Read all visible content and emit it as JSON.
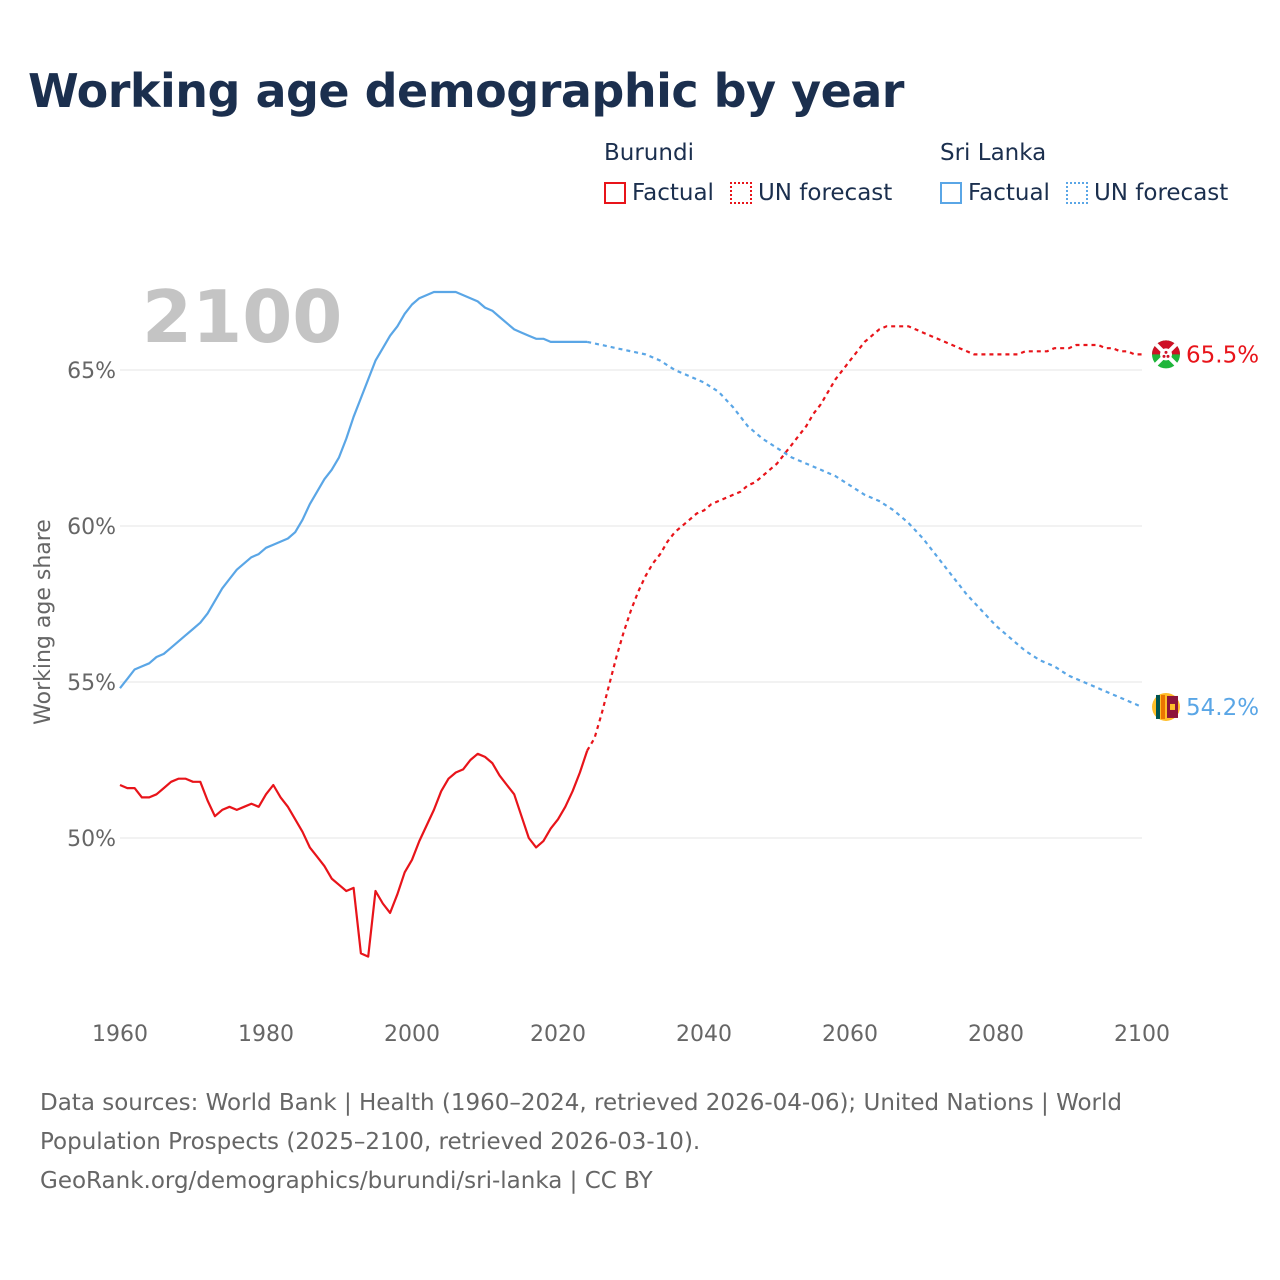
{
  "chart_data": {
    "type": "line",
    "title": "Working age demographic by year",
    "ylabel": "Working age share",
    "xlabel": "",
    "xlim": [
      1960,
      2100
    ],
    "ylim": [
      45.5,
      68.5
    ],
    "year_watermark": "2100",
    "x_ticks": [
      1960,
      1980,
      2000,
      2020,
      2040,
      2060,
      2080,
      2100
    ],
    "x_tick_labels": [
      "1960",
      "1980",
      "2000",
      "2020",
      "2040",
      "2060",
      "2080",
      "2100"
    ],
    "y_ticks": [
      50,
      55,
      60,
      65
    ],
    "y_tick_labels": [
      "50%",
      "55%",
      "60%",
      "65%"
    ],
    "legend": {
      "groups": [
        {
          "country": "Burundi",
          "factual_label": "Factual",
          "forecast_label": "UN forecast",
          "color": "#e8141a"
        },
        {
          "country": "Sri Lanka",
          "factual_label": "Factual",
          "forecast_label": "UN forecast",
          "color": "#5aa6e6"
        }
      ]
    },
    "series": [
      {
        "name": "Burundi",
        "color": "#e8141a",
        "end_label": "65.5%",
        "factual": {
          "x": [
            1960,
            1961,
            1962,
            1963,
            1964,
            1965,
            1966,
            1967,
            1968,
            1969,
            1970,
            1971,
            1972,
            1973,
            1974,
            1975,
            1976,
            1977,
            1978,
            1979,
            1980,
            1981,
            1982,
            1983,
            1984,
            1985,
            1986,
            1987,
            1988,
            1989,
            1990,
            1991,
            1992,
            1993,
            1994,
            1995,
            1996,
            1997,
            1998,
            1999,
            2000,
            2001,
            2002,
            2003,
            2004,
            2005,
            2006,
            2007,
            2008,
            2009,
            2010,
            2011,
            2012,
            2013,
            2014,
            2015,
            2016,
            2017,
            2018,
            2019,
            2020,
            2021,
            2022,
            2023,
            2024
          ],
          "y": [
            51.7,
            51.6,
            51.6,
            51.3,
            51.3,
            51.4,
            51.6,
            51.8,
            51.9,
            51.9,
            51.8,
            51.8,
            51.2,
            50.7,
            50.9,
            51.0,
            50.9,
            51.0,
            51.1,
            51.0,
            51.4,
            51.7,
            51.3,
            51.0,
            50.6,
            50.2,
            49.7,
            49.4,
            49.1,
            48.7,
            48.5,
            48.3,
            48.4,
            46.3,
            46.2,
            48.3,
            47.9,
            47.6,
            48.2,
            48.9,
            49.3,
            49.9,
            50.4,
            50.9,
            51.5,
            51.9,
            52.1,
            52.2,
            52.5,
            52.7,
            52.6,
            52.4,
            52.0,
            51.7,
            51.4,
            50.7,
            50.0,
            49.7,
            49.9,
            50.3,
            50.6,
            51.0,
            51.5,
            52.1,
            52.8
          ]
        },
        "forecast": {
          "x": [
            2024,
            2025,
            2026,
            2027,
            2028,
            2029,
            2030,
            2031,
            2032,
            2033,
            2034,
            2035,
            2036,
            2037,
            2038,
            2039,
            2040,
            2041,
            2042,
            2043,
            2044,
            2045,
            2046,
            2047,
            2048,
            2049,
            2050,
            2051,
            2052,
            2053,
            2054,
            2055,
            2056,
            2057,
            2058,
            2059,
            2060,
            2061,
            2062,
            2063,
            2064,
            2065,
            2066,
            2067,
            2068,
            2069,
            2070,
            2071,
            2072,
            2073,
            2074,
            2075,
            2076,
            2077,
            2078,
            2079,
            2080,
            2081,
            2082,
            2083,
            2084,
            2085,
            2086,
            2087,
            2088,
            2089,
            2090,
            2091,
            2092,
            2093,
            2094,
            2095,
            2096,
            2097,
            2098,
            2099,
            2100
          ],
          "y": [
            52.8,
            53.2,
            54.0,
            54.9,
            55.8,
            56.6,
            57.3,
            57.9,
            58.4,
            58.8,
            59.1,
            59.5,
            59.8,
            60.0,
            60.2,
            60.4,
            60.5,
            60.7,
            60.8,
            60.9,
            61.0,
            61.1,
            61.3,
            61.4,
            61.6,
            61.8,
            62.0,
            62.3,
            62.6,
            62.9,
            63.2,
            63.6,
            63.9,
            64.3,
            64.7,
            65.0,
            65.3,
            65.6,
            65.9,
            66.1,
            66.3,
            66.4,
            66.4,
            66.4,
            66.4,
            66.3,
            66.2,
            66.1,
            66.0,
            65.9,
            65.8,
            65.7,
            65.6,
            65.5,
            65.5,
            65.5,
            65.5,
            65.5,
            65.5,
            65.5,
            65.6,
            65.6,
            65.6,
            65.6,
            65.7,
            65.7,
            65.7,
            65.8,
            65.8,
            65.8,
            65.8,
            65.7,
            65.7,
            65.6,
            65.6,
            65.5,
            65.5
          ]
        }
      },
      {
        "name": "Sri Lanka",
        "color": "#5aa6e6",
        "end_label": "54.2%",
        "factual": {
          "x": [
            1960,
            1961,
            1962,
            1963,
            1964,
            1965,
            1966,
            1967,
            1968,
            1969,
            1970,
            1971,
            1972,
            1973,
            1974,
            1975,
            1976,
            1977,
            1978,
            1979,
            1980,
            1981,
            1982,
            1983,
            1984,
            1985,
            1986,
            1987,
            1988,
            1989,
            1990,
            1991,
            1992,
            1993,
            1994,
            1995,
            1996,
            1997,
            1998,
            1999,
            2000,
            2001,
            2002,
            2003,
            2004,
            2005,
            2006,
            2007,
            2008,
            2009,
            2010,
            2011,
            2012,
            2013,
            2014,
            2015,
            2016,
            2017,
            2018,
            2019,
            2020,
            2021,
            2022,
            2023,
            2024
          ],
          "y": [
            54.8,
            55.1,
            55.4,
            55.5,
            55.6,
            55.8,
            55.9,
            56.1,
            56.3,
            56.5,
            56.7,
            56.9,
            57.2,
            57.6,
            58.0,
            58.3,
            58.6,
            58.8,
            59.0,
            59.1,
            59.3,
            59.4,
            59.5,
            59.6,
            59.8,
            60.2,
            60.7,
            61.1,
            61.5,
            61.8,
            62.2,
            62.8,
            63.5,
            64.1,
            64.7,
            65.3,
            65.7,
            66.1,
            66.4,
            66.8,
            67.1,
            67.3,
            67.4,
            67.5,
            67.5,
            67.5,
            67.5,
            67.4,
            67.3,
            67.2,
            67.0,
            66.9,
            66.7,
            66.5,
            66.3,
            66.2,
            66.1,
            66.0,
            66.0,
            65.9,
            65.9,
            65.9,
            65.9,
            65.9,
            65.9
          ]
        },
        "forecast": {
          "x": [
            2024,
            2026,
            2028,
            2030,
            2032,
            2034,
            2036,
            2038,
            2040,
            2042,
            2044,
            2046,
            2048,
            2050,
            2052,
            2054,
            2056,
            2058,
            2060,
            2062,
            2064,
            2066,
            2068,
            2070,
            2072,
            2074,
            2076,
            2078,
            2080,
            2082,
            2084,
            2086,
            2088,
            2090,
            2092,
            2094,
            2096,
            2098,
            2100
          ],
          "y": [
            65.9,
            65.8,
            65.7,
            65.6,
            65.5,
            65.3,
            65.0,
            64.8,
            64.6,
            64.3,
            63.8,
            63.2,
            62.8,
            62.5,
            62.2,
            62.0,
            61.8,
            61.6,
            61.3,
            61.0,
            60.8,
            60.5,
            60.1,
            59.6,
            59.0,
            58.4,
            57.8,
            57.3,
            56.8,
            56.4,
            56.0,
            55.7,
            55.5,
            55.2,
            55.0,
            54.8,
            54.6,
            54.4,
            54.2
          ]
        }
      }
    ]
  },
  "footer": {
    "sources_line": "Data sources: World Bank | Health (1960–2024, retrieved 2026-04-06); United Nations | World",
    "sources_line2": "Population Prospects (2025–2100, retrieved 2026-03-10).",
    "attribution": "GeoRank.org/demographics/burundi/sri-lanka | CC BY"
  },
  "colors": {
    "burundi": "#e8141a",
    "sri_lanka": "#5aa6e6",
    "title": "#1b2f4e",
    "axis_text": "#666666",
    "grid": "#e6e6e6"
  }
}
